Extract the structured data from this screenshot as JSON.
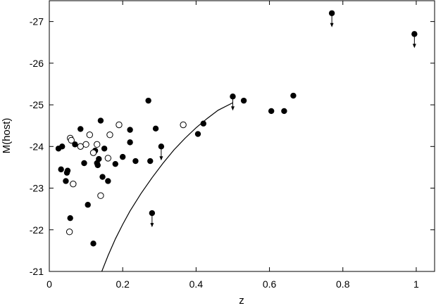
{
  "chart_data": {
    "type": "scatter",
    "xlabel": "z",
    "ylabel": "M(host)",
    "xlim": [
      0,
      1.05
    ],
    "ylim": [
      -21,
      -27.5
    ],
    "y_inverted": true,
    "xticks": [
      0,
      0.2,
      0.4,
      0.6,
      0.8,
      1
    ],
    "xtick_labels": [
      "0",
      "0.2",
      "0.4",
      "0.6",
      "0.8",
      "1"
    ],
    "yticks": [
      -27,
      -26,
      -25,
      -24,
      -23,
      -22,
      -21
    ],
    "ytick_labels": [
      "-27",
      "-26",
      "-25",
      "-24",
      "-23",
      "-22",
      "-21"
    ],
    "grid": false,
    "series": [
      {
        "marker": "filled-circle",
        "x": [
          0.025,
          0.035,
          0.032,
          0.045,
          0.05,
          0.048,
          0.057,
          0.07,
          0.085,
          0.095,
          0.105,
          0.12,
          0.125,
          0.13,
          0.132,
          0.135,
          0.14,
          0.145,
          0.15,
          0.16,
          0.18,
          0.2,
          0.22,
          0.22,
          0.235,
          0.27,
          0.275,
          0.29,
          0.405,
          0.42,
          0.53,
          0.605,
          0.64,
          0.665
        ],
        "y": [
          -23.95,
          -24.0,
          -23.45,
          -23.17,
          -23.42,
          -23.37,
          -22.28,
          -24.05,
          -24.42,
          -23.6,
          -22.6,
          -21.67,
          -23.9,
          -23.6,
          -23.55,
          -23.7,
          -24.62,
          -23.27,
          -23.95,
          -23.17,
          -23.58,
          -23.75,
          -24.1,
          -24.4,
          -23.65,
          -25.1,
          -23.65,
          -24.43,
          -24.3,
          -24.55,
          -25.1,
          -24.85,
          -24.85,
          -25.22
        ]
      },
      {
        "marker": "open-circle",
        "x": [
          0.055,
          0.057,
          0.06,
          0.065,
          0.085,
          0.1,
          0.11,
          0.12,
          0.13,
          0.14,
          0.16,
          0.165,
          0.19,
          0.365
        ],
        "y": [
          -21.95,
          -24.2,
          -24.15,
          -23.1,
          -24.0,
          -24.05,
          -24.28,
          -23.85,
          -24.05,
          -22.82,
          -23.72,
          -24.28,
          -24.52,
          -24.52
        ]
      },
      {
        "marker": "filled-circle-upper-limit",
        "x": [
          0.28,
          0.305,
          0.5,
          0.77,
          0.995
        ],
        "y": [
          -22.4,
          -24.0,
          -25.2,
          -27.2,
          -26.7
        ]
      }
    ],
    "curve": {
      "x": [
        0.143,
        0.16,
        0.18,
        0.2,
        0.22,
        0.25,
        0.28,
        0.31,
        0.34,
        0.37,
        0.4,
        0.43,
        0.46,
        0.5
      ],
      "y": [
        -21.0,
        -21.38,
        -21.78,
        -22.13,
        -22.45,
        -22.87,
        -23.25,
        -23.6,
        -23.92,
        -24.2,
        -24.45,
        -24.67,
        -24.87,
        -25.05
      ]
    }
  }
}
